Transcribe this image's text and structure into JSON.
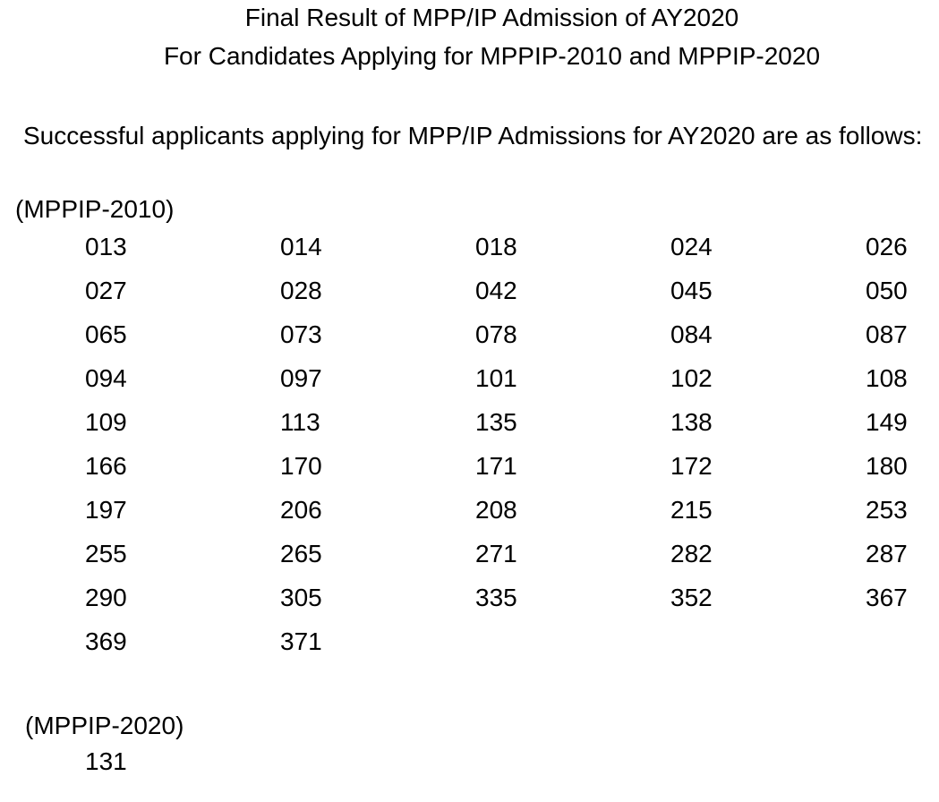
{
  "document": {
    "title_line1": "Final Result of MPP/IP Admission of AY2020",
    "title_line2": "For Candidates Applying for MPPIP-2010 and MPPIP-2020",
    "intro": "Successful applicants applying for MPP/IP Admissions for AY2020 are as follows:",
    "text_color": "#000000",
    "background_color": "#ffffff",
    "sections": [
      {
        "header": "(MPPIP-2010)",
        "rows": [
          [
            "013",
            "014",
            "018",
            "024",
            "026"
          ],
          [
            "027",
            "028",
            "042",
            "045",
            "050"
          ],
          [
            "065",
            "073",
            "078",
            "084",
            "087"
          ],
          [
            "094",
            "097",
            "101",
            "102",
            "108"
          ],
          [
            "109",
            "113",
            "135",
            "138",
            "149"
          ],
          [
            "166",
            "170",
            "171",
            "172",
            "180"
          ],
          [
            "197",
            "206",
            "208",
            "215",
            "253"
          ],
          [
            "255",
            "265",
            "271",
            "282",
            "287"
          ],
          [
            "290",
            "305",
            "335",
            "352",
            "367"
          ],
          [
            "369",
            "371"
          ]
        ]
      },
      {
        "header": "(MPPIP-2020)",
        "rows": [
          [
            "131"
          ]
        ]
      }
    ]
  }
}
